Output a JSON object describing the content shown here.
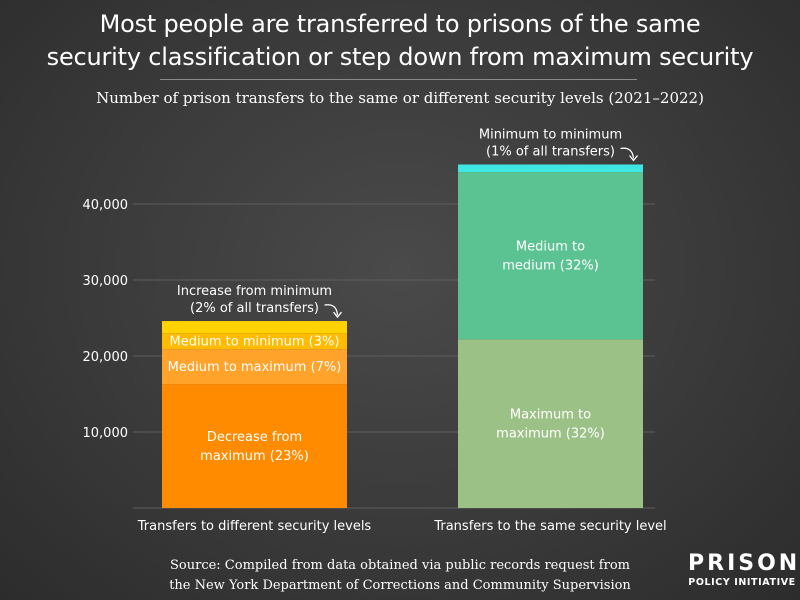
{
  "header": {
    "title": "Most people are transferred to prisons of the same\nsecurity classification or step down from maximum security",
    "subtitle": "Number of prison transfers to the same or different security levels (2021–2022)"
  },
  "chart_data": {
    "type": "bar",
    "stacked": true,
    "categories": [
      "Transfers to different security levels",
      "Transfers to the same security level"
    ],
    "series": [
      {
        "name": "Decrease from maximum (23%)",
        "category": "Transfers to different security levels",
        "value": 16300,
        "color": "#FF8C00",
        "label": "Decrease from\nmaximum (23%)"
      },
      {
        "name": "Medium to maximum (7%)",
        "category": "Transfers to different security levels",
        "value": 4600,
        "color": "#FFA32A",
        "label": "Medium to maximum (7%)"
      },
      {
        "name": "Medium to minimum (3%)",
        "category": "Transfers to different security levels",
        "value": 2100,
        "color": "#FFBB00",
        "label": "Medium to minimum (3%)"
      },
      {
        "name": "Increase from minimum (2% of all transfers)",
        "category": "Transfers to different security levels",
        "value": 1600,
        "color": "#FFD200",
        "label": ""
      },
      {
        "name": "Maximum to maximum (32%)",
        "category": "Transfers to the same security level",
        "value": 22200,
        "color": "#9CC187",
        "label": "Maximum to\nmaximum (32%)"
      },
      {
        "name": "Medium to medium (32%)",
        "category": "Transfers to the same security level",
        "value": 22000,
        "color": "#5BC392",
        "label": "Medium to\nmedium (32%)"
      },
      {
        "name": "Minimum to minimum (1% of all transfers)",
        "category": "Transfers to the same security level",
        "value": 1000,
        "color": "#3FE5E3",
        "label": ""
      }
    ],
    "totals": [
      24600,
      45200
    ],
    "yticks": [
      10000,
      20000,
      30000,
      40000
    ],
    "ytick_labels": [
      "10,000",
      "20,000",
      "30,000",
      "40,000"
    ],
    "ylim": [
      0,
      47000
    ],
    "grid": true,
    "annotations": [
      {
        "text": "Increase from minimum\n(2% of all transfers)",
        "target": "Transfers to different security levels"
      },
      {
        "text": "Minimum to minimum\n(1% of all transfers)",
        "target": "Transfers to the same security level"
      }
    ],
    "colors": {
      "gridline": "#5e5e5e",
      "axis_text": "#ffffff",
      "arrow": "#ffffff"
    }
  },
  "footer": {
    "source_line1": "Source: Compiled from data obtained via public records request from",
    "source_line2": "the New York Department of Corrections and Community Supervision"
  },
  "logo": {
    "line1": "PRISON",
    "line2": "POLICY INITIATIVE"
  }
}
